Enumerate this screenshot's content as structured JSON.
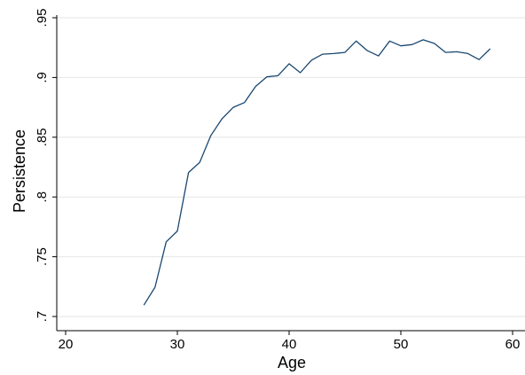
{
  "chart_data": {
    "type": "line",
    "xlabel": "Age",
    "ylabel": "Persistence",
    "xlim": [
      20,
      60
    ],
    "ylim": [
      0.7,
      0.95
    ],
    "x_ticks": [
      20,
      30,
      40,
      50,
      60
    ],
    "y_ticks": [
      0.7,
      0.75,
      0.8,
      0.85,
      0.9,
      0.95
    ],
    "x_tick_labels": [
      "20",
      "30",
      "40",
      "50",
      "60"
    ],
    "y_tick_labels": [
      ".7",
      ".75",
      ".8",
      ".85",
      ".9",
      ".95"
    ],
    "grid": "horizontal",
    "line_color": "#1a476f",
    "series": [
      {
        "x": [
          27,
          28,
          29,
          30,
          31,
          32,
          33,
          34,
          35,
          36,
          37,
          38,
          39,
          40,
          41,
          42,
          43,
          44,
          45,
          46,
          47,
          48,
          49,
          50,
          51,
          52,
          53,
          54,
          55,
          56,
          57,
          58
        ],
        "values": [
          0.7095,
          0.7245,
          0.7625,
          0.7715,
          0.8205,
          0.829,
          0.8515,
          0.8655,
          0.875,
          0.879,
          0.8925,
          0.9005,
          0.9015,
          0.9115,
          0.904,
          0.9145,
          0.9195,
          0.92,
          0.921,
          0.9305,
          0.9225,
          0.918,
          0.9305,
          0.9265,
          0.9275,
          0.9315,
          0.9285,
          0.921,
          0.9215,
          0.92,
          0.915,
          0.924
        ]
      }
    ]
  }
}
